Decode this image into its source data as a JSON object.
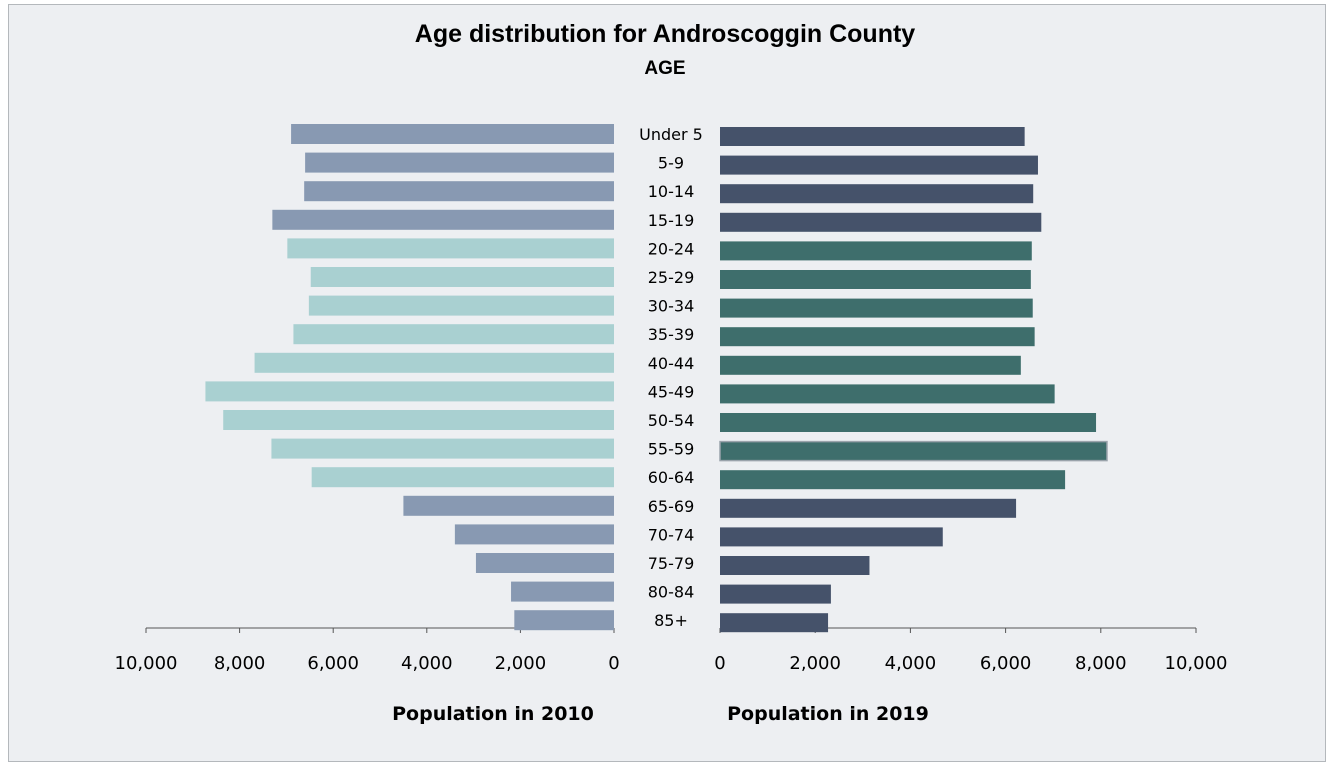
{
  "title": "Age distribution for Androscoggin County",
  "subtitle": "AGE",
  "colors": {
    "background": "#edeff2",
    "bar_2010_group_a": "#8899b2",
    "bar_2010_group_b": "#a9d0d1",
    "bar_2019_group_a": "#45526a",
    "bar_2019_group_b": "#3e6e6c"
  },
  "chart_data": {
    "type": "bar",
    "orientation": "horizontal-butterfly",
    "categories": [
      "Under 5",
      "5-9",
      "10-14",
      "15-19",
      "20-24",
      "25-29",
      "30-34",
      "35-39",
      "40-44",
      "45-49",
      "50-54",
      "55-59",
      "60-64",
      "65-69",
      "70-74",
      "75-79",
      "80-84",
      "85+"
    ],
    "series": [
      {
        "name": "Population in 2010",
        "side": "left",
        "values": [
          6900,
          6600,
          6620,
          7300,
          6980,
          6480,
          6520,
          6850,
          7680,
          8730,
          8350,
          7320,
          6460,
          4500,
          3400,
          2950,
          2200,
          2130
        ]
      },
      {
        "name": "Population in 2019",
        "side": "right",
        "values": [
          6400,
          6680,
          6580,
          6750,
          6550,
          6530,
          6570,
          6610,
          6320,
          7030,
          7900,
          8130,
          7250,
          6220,
          4680,
          3140,
          2330,
          2270
        ]
      }
    ],
    "xlim_left": [
      0,
      10000
    ],
    "xlim_right": [
      0,
      10000
    ],
    "ticks_left": [
      "10,000",
      "8,000",
      "6,000",
      "4,000",
      "2,000",
      "0"
    ],
    "ticks_right": [
      "0",
      "2,000",
      "4,000",
      "6,000",
      "8,000",
      "10,000"
    ],
    "xlabel_left": "Population in 2010",
    "xlabel_right": "Population in 2019",
    "highlight_range": [
      "20-24",
      "60-64"
    ],
    "grid": false,
    "legend": "none"
  }
}
